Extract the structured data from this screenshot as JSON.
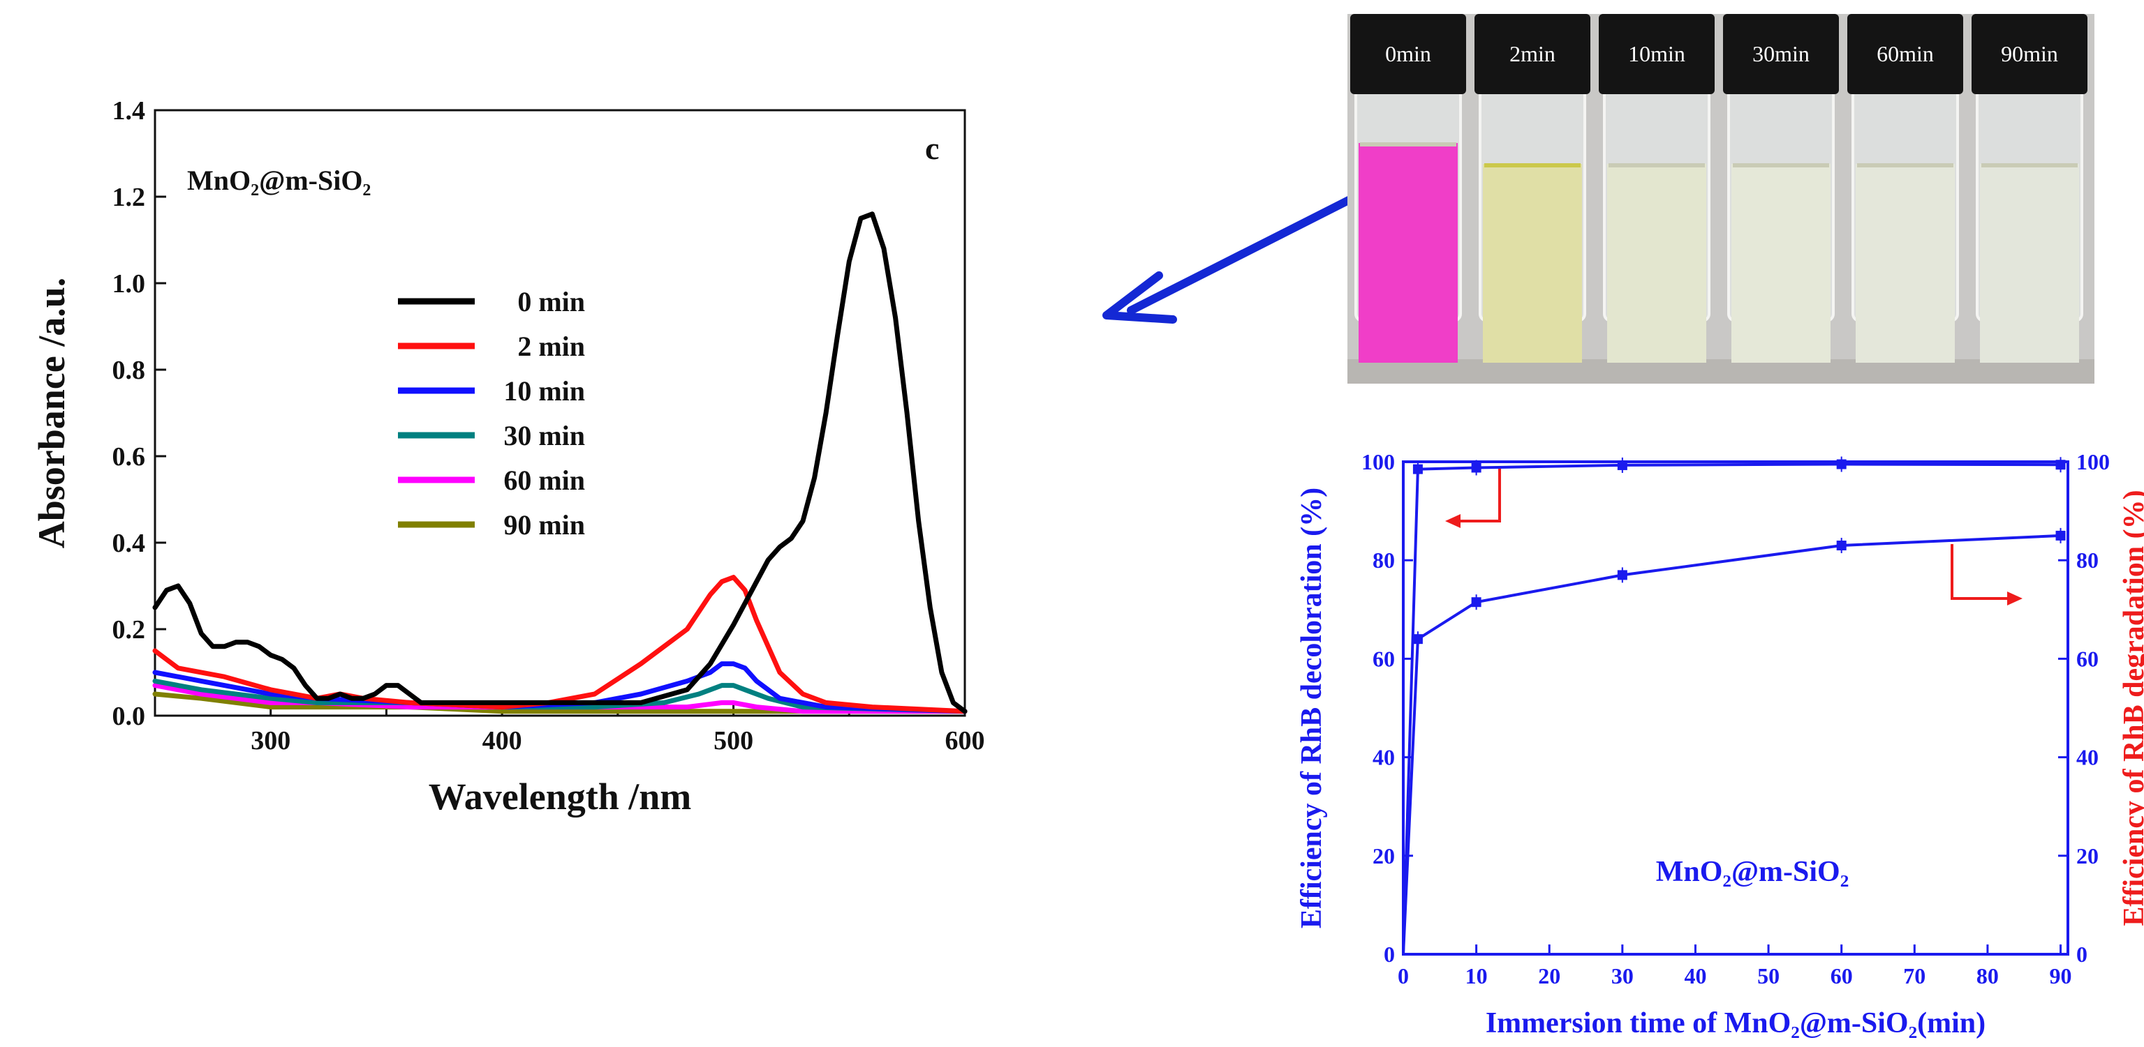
{
  "colors": {
    "axis": "#111111",
    "blue": "#1a1aee",
    "red": "#ee1c1c",
    "arrow": "#1428d4"
  },
  "chart_data": [
    {
      "type": "line",
      "panel": "c",
      "annotation": "MnO₂@m-SiO₂",
      "xlabel": "Wavelength /nm",
      "ylabel": "Absorbance /a.u.",
      "xlim": [
        250,
        600
      ],
      "ylim": [
        0,
        1.4
      ],
      "xticks": [
        "300",
        "400",
        "500",
        "600"
      ],
      "yticks": [
        "0.0",
        "0.2",
        "0.4",
        "0.6",
        "0.8",
        "1.0",
        "1.2",
        "1.4"
      ],
      "grid": false,
      "legend_position": "middle-center",
      "series": [
        {
          "name": "0 min",
          "color": "#000000",
          "x": [
            250,
            255,
            260,
            265,
            270,
            275,
            280,
            285,
            290,
            295,
            300,
            305,
            310,
            315,
            320,
            325,
            330,
            335,
            340,
            345,
            350,
            355,
            360,
            365,
            370,
            380,
            400,
            420,
            440,
            460,
            480,
            490,
            500,
            510,
            515,
            520,
            525,
            530,
            535,
            540,
            545,
            550,
            555,
            560,
            565,
            570,
            575,
            580,
            585,
            590,
            595,
            600
          ],
          "y": [
            0.25,
            0.29,
            0.3,
            0.26,
            0.19,
            0.16,
            0.16,
            0.17,
            0.17,
            0.16,
            0.14,
            0.13,
            0.11,
            0.07,
            0.04,
            0.04,
            0.05,
            0.04,
            0.04,
            0.05,
            0.07,
            0.07,
            0.05,
            0.03,
            0.03,
            0.03,
            0.03,
            0.03,
            0.03,
            0.03,
            0.06,
            0.12,
            0.21,
            0.31,
            0.36,
            0.39,
            0.41,
            0.45,
            0.55,
            0.7,
            0.88,
            1.05,
            1.15,
            1.16,
            1.08,
            0.92,
            0.7,
            0.45,
            0.25,
            0.1,
            0.03,
            0.01
          ]
        },
        {
          "name": "2 min",
          "color": "#ff1010",
          "x": [
            250,
            260,
            280,
            300,
            320,
            330,
            340,
            360,
            400,
            420,
            440,
            460,
            470,
            480,
            490,
            495,
            500,
            505,
            510,
            520,
            530,
            540,
            560,
            600
          ],
          "y": [
            0.15,
            0.11,
            0.09,
            0.06,
            0.04,
            0.05,
            0.04,
            0.03,
            0.02,
            0.03,
            0.05,
            0.12,
            0.16,
            0.2,
            0.28,
            0.31,
            0.32,
            0.29,
            0.22,
            0.1,
            0.05,
            0.03,
            0.02,
            0.01
          ]
        },
        {
          "name": "10 min",
          "color": "#1010ff",
          "x": [
            250,
            270,
            300,
            320,
            360,
            400,
            440,
            460,
            480,
            490,
            495,
            500,
            505,
            510,
            520,
            540,
            600
          ],
          "y": [
            0.1,
            0.08,
            0.05,
            0.04,
            0.03,
            0.02,
            0.03,
            0.05,
            0.08,
            0.1,
            0.12,
            0.12,
            0.11,
            0.08,
            0.04,
            0.02,
            0.01
          ]
        },
        {
          "name": "30 min",
          "color": "#008080",
          "x": [
            250,
            270,
            300,
            320,
            360,
            400,
            440,
            470,
            485,
            495,
            500,
            505,
            515,
            530,
            600
          ],
          "y": [
            0.08,
            0.06,
            0.04,
            0.03,
            0.03,
            0.02,
            0.02,
            0.03,
            0.05,
            0.07,
            0.07,
            0.06,
            0.04,
            0.02,
            0.01
          ]
        },
        {
          "name": "60 min",
          "color": "#ff00ff",
          "x": [
            250,
            270,
            300,
            320,
            360,
            400,
            440,
            480,
            495,
            500,
            510,
            530,
            600
          ],
          "y": [
            0.07,
            0.05,
            0.03,
            0.03,
            0.02,
            0.02,
            0.02,
            0.02,
            0.03,
            0.03,
            0.02,
            0.01,
            0.01
          ]
        },
        {
          "name": "90 min",
          "color": "#808000",
          "x": [
            250,
            270,
            300,
            320,
            360,
            400,
            440,
            480,
            500,
            530,
            600
          ],
          "y": [
            0.05,
            0.04,
            0.02,
            0.02,
            0.02,
            0.01,
            0.01,
            0.01,
            0.01,
            0.01,
            0.01
          ]
        }
      ]
    },
    {
      "type": "line",
      "annotation": "MnO₂@m-SiO₂",
      "xlabel": "Immersion time of MnO₂@m-SiO₂(min)",
      "ylabel_left": "Efficiency of RhB decoloration (%)",
      "ylabel_right": "Efficiency of RhB degradation (%)",
      "xlim": [
        0,
        91
      ],
      "ylim": [
        0,
        100
      ],
      "xticks": [
        "0",
        "10",
        "20",
        "30",
        "40",
        "50",
        "60",
        "70",
        "80",
        "90"
      ],
      "yticks": [
        "0",
        "20",
        "40",
        "60",
        "80",
        "100"
      ],
      "legend_position": "none",
      "series": [
        {
          "name": "Efficiency of RhB decoloration",
          "axis": "left",
          "x": [
            0,
            2,
            10,
            30,
            60,
            90
          ],
          "y": [
            0,
            98.5,
            98.8,
            99.3,
            99.5,
            99.4
          ]
        },
        {
          "name": "Efficiency of RhB degradation",
          "axis": "right",
          "x": [
            0,
            2,
            10,
            30,
            60,
            90
          ],
          "y": [
            0,
            64,
            71.5,
            77,
            83,
            85
          ]
        }
      ]
    }
  ],
  "photo": {
    "vial_labels": [
      "0min",
      "2min",
      "10min",
      "30min",
      "60min",
      "90min"
    ],
    "liquid_colors": [
      "#f03ec8",
      "#e0dfa6",
      "#e3e6cf",
      "#e5e8d8",
      "#e4e7da",
      "#e3e6db"
    ]
  }
}
